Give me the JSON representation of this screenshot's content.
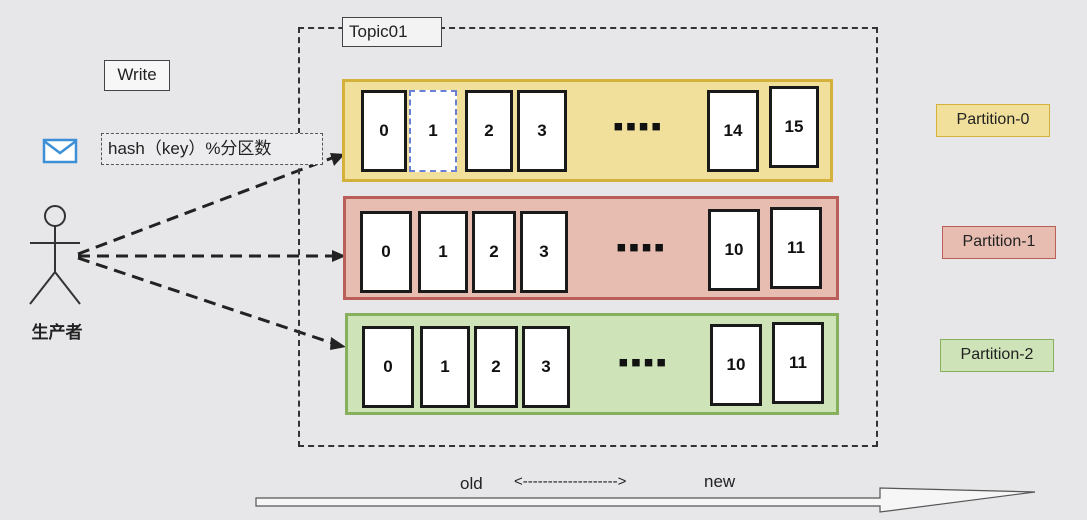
{
  "topic": {
    "label": "Topic01"
  },
  "producer": {
    "write_label": "Write",
    "hash_label": "hash（key）%分区数",
    "label": "生产者"
  },
  "partitions": [
    {
      "name": "Partition-0",
      "cells": [
        "0",
        "1",
        "2",
        "3",
        "14",
        "15"
      ],
      "color": "#f1df9c",
      "border": "#d4b13a"
    },
    {
      "name": "Partition-1",
      "cells": [
        "0",
        "1",
        "2",
        "3",
        "10",
        "11"
      ],
      "color": "#e7bdb1",
      "border": "#b95e58"
    },
    {
      "name": "Partition-2",
      "cells": [
        "0",
        "1",
        "2",
        "3",
        "10",
        "11"
      ],
      "color": "#cfe3b8",
      "border": "#86b05d"
    }
  ],
  "ellipsis": "▪▪▪▪",
  "timeline": {
    "old": "old",
    "arrow_text": "<------------------->",
    "new": "new"
  }
}
